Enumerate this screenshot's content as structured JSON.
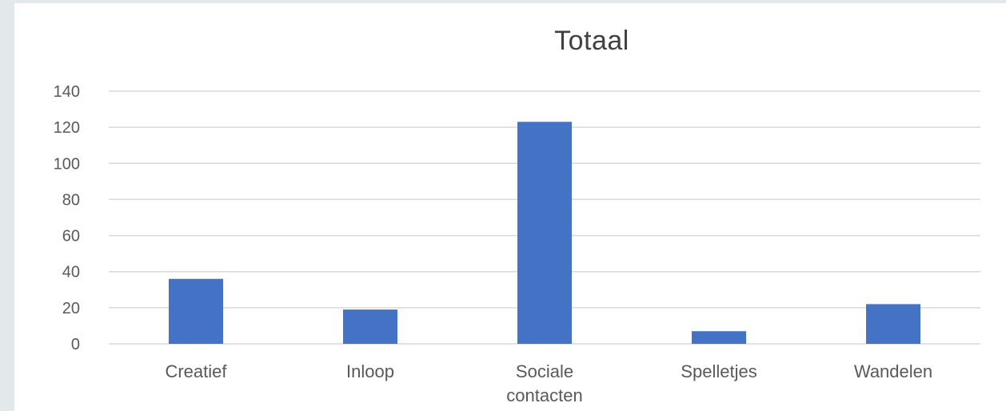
{
  "chart_data": {
    "type": "bar",
    "title": "Totaal",
    "categories": [
      "Creatief",
      "Inloop",
      "Sociale contacten",
      "Spelletjes",
      "Wandelen"
    ],
    "category_lines": [
      [
        "Creatief"
      ],
      [
        "Inloop"
      ],
      [
        "Sociale",
        "contacten"
      ],
      [
        "Spelletjes"
      ],
      [
        "Wandelen"
      ]
    ],
    "values": [
      36,
      19,
      123,
      7,
      22
    ],
    "yticks": [
      0,
      20,
      40,
      60,
      80,
      100,
      120,
      140
    ],
    "ylim": [
      0,
      140
    ],
    "grid": true,
    "bar_color": "#4472c4",
    "grid_color": "#d9d9d9"
  }
}
